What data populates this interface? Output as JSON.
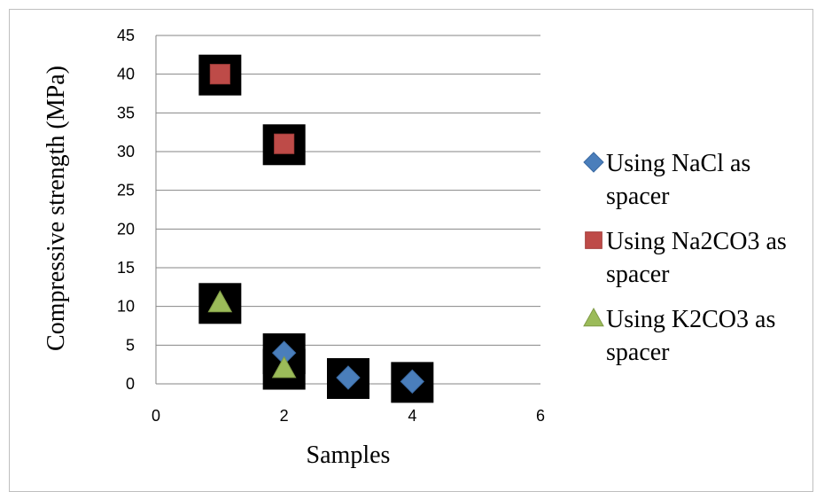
{
  "chart_data": {
    "type": "scatter",
    "xlabel": "Samples",
    "ylabel": "Compressive strength (MPa)",
    "xlim": [
      0,
      6
    ],
    "ylim": [
      0,
      45
    ],
    "x_ticks": [
      0,
      2,
      4,
      6
    ],
    "y_ticks": [
      0,
      5,
      10,
      15,
      20,
      25,
      30,
      35,
      40,
      45
    ],
    "grid": "horizontal",
    "legend_position": "right",
    "series": [
      {
        "name": "Using NaCl as spacer",
        "name_lines": [
          "Using NaCl as",
          "spacer"
        ],
        "marker": "diamond",
        "color": "#4a7ebb",
        "points": [
          [
            2,
            4
          ],
          [
            3,
            0.8
          ],
          [
            4,
            0.3
          ]
        ]
      },
      {
        "name": "Using Na2CO3 as spacer",
        "name_lines": [
          "Using Na2CO3 as",
          "spacer"
        ],
        "marker": "square",
        "color": "#be4b48",
        "points": [
          [
            1,
            40
          ],
          [
            2,
            31
          ]
        ]
      },
      {
        "name": "Using K2CO3 as spacer",
        "name_lines": [
          "Using K2CO3 as",
          "spacer"
        ],
        "marker": "triangle",
        "color": "#9bbb59",
        "points": [
          [
            1,
            10.5
          ],
          [
            2,
            2
          ]
        ]
      }
    ]
  }
}
